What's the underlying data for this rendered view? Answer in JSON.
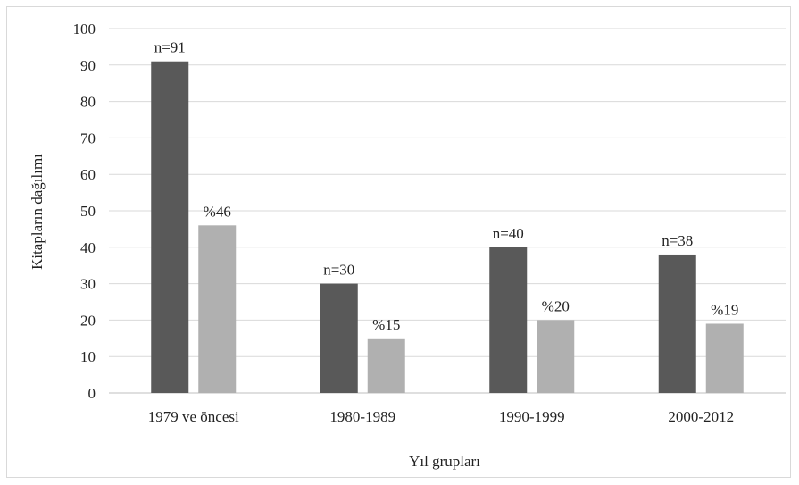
{
  "chart_data": {
    "type": "bar",
    "categories": [
      "1979 ve öncesi",
      "1980-1989",
      "1990-1999",
      "2000-2012"
    ],
    "series": [
      {
        "values": [
          91,
          30,
          40,
          38
        ],
        "labels": [
          "n=91",
          "n=30",
          "n=40",
          "n=38"
        ],
        "color": "#595959"
      },
      {
        "values": [
          46,
          15,
          20,
          19
        ],
        "labels": [
          "%46",
          "%15",
          "%20",
          "%19"
        ],
        "color": "#b0b0b0"
      }
    ],
    "xlabel": "Yıl grupları",
    "ylabel": "Kitapların dağılımı",
    "ylim": [
      0,
      100
    ],
    "yticks": [
      0,
      10,
      20,
      30,
      40,
      50,
      60,
      70,
      80,
      90,
      100
    ],
    "grid": true,
    "legend": "none"
  }
}
